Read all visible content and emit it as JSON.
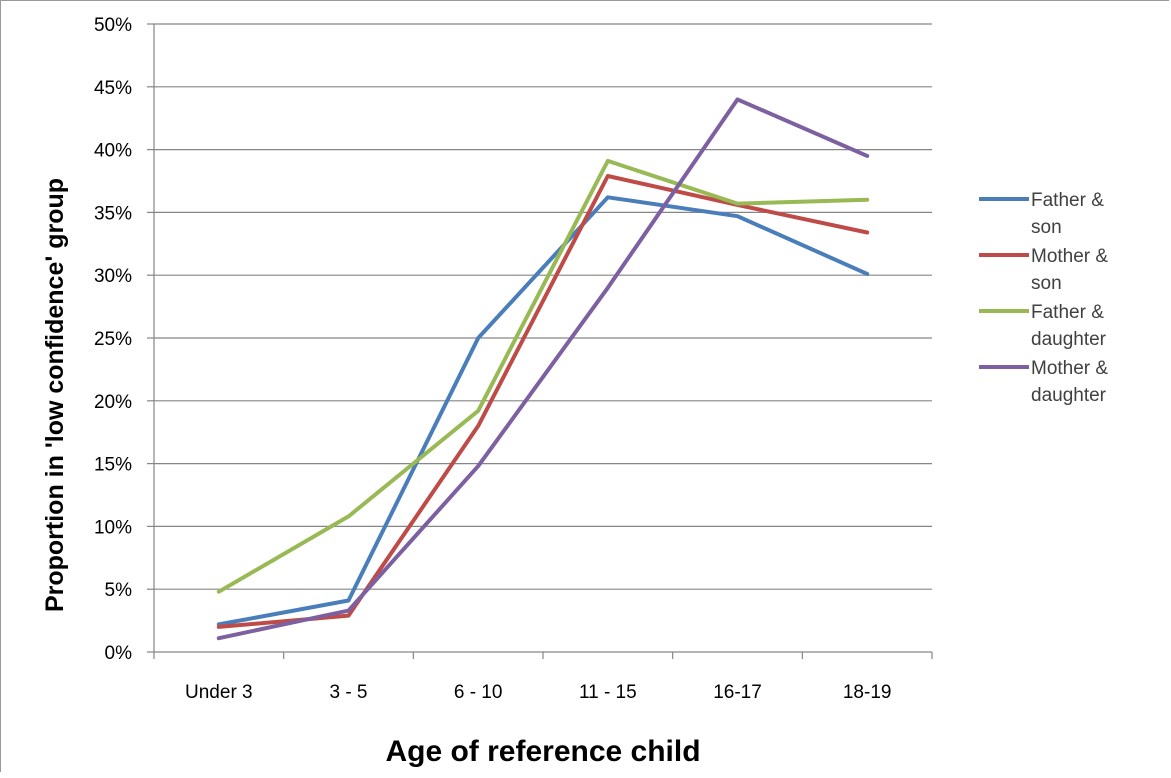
{
  "chart_data": {
    "type": "line",
    "title": "",
    "xlabel": "Age of reference child",
    "ylabel": "Proportion in 'low confidence' group",
    "categories": [
      "Under 3",
      "3 - 5",
      "6 - 10",
      "11 - 15",
      "16-17",
      "18-19"
    ],
    "ylim": [
      0,
      50
    ],
    "y_ticks": [
      0,
      5,
      10,
      15,
      20,
      25,
      30,
      35,
      40,
      45,
      50
    ],
    "y_tick_labels": [
      "0%",
      "5%",
      "10%",
      "15%",
      "20%",
      "25%",
      "30%",
      "35%",
      "40%",
      "45%",
      "50%"
    ],
    "grid": "horizontal",
    "legend": "right",
    "series": [
      {
        "name_lines": [
          "Father &",
          "son"
        ],
        "name": "Father & son",
        "color": "#4a7ebb",
        "values": [
          2.2,
          4.1,
          25.0,
          36.2,
          34.7,
          30.1
        ]
      },
      {
        "name_lines": [
          "Mother &",
          "son"
        ],
        "name": "Mother & son",
        "color": "#be4b48",
        "values": [
          2.0,
          2.9,
          18.0,
          37.9,
          35.6,
          33.4
        ]
      },
      {
        "name_lines": [
          "Father &",
          "daughter"
        ],
        "name": "Father & daughter",
        "color": "#98b954",
        "values": [
          4.8,
          10.8,
          19.2,
          39.1,
          35.7,
          36.0
        ]
      },
      {
        "name_lines": [
          "Mother &",
          "daughter"
        ],
        "name": "Mother & daughter",
        "color": "#7d60a0",
        "values": [
          1.1,
          3.3,
          14.8,
          29.0,
          44.0,
          39.5
        ]
      }
    ]
  }
}
